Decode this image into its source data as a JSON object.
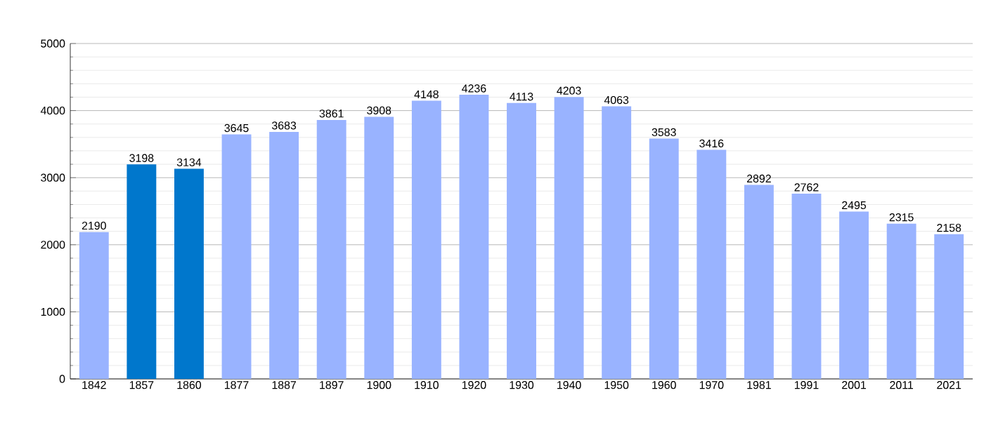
{
  "chart_data": {
    "type": "bar",
    "categories": [
      "1842",
      "1857",
      "1860",
      "1877",
      "1887",
      "1897",
      "1900",
      "1910",
      "1920",
      "1930",
      "1940",
      "1950",
      "1960",
      "1970",
      "1981",
      "1991",
      "2001",
      "2011",
      "2021"
    ],
    "values": [
      2190,
      3198,
      3134,
      3645,
      3683,
      3861,
      3908,
      4148,
      4236,
      4113,
      4203,
      4063,
      3583,
      3416,
      2892,
      2762,
      2495,
      2315,
      2158
    ],
    "colors": [
      "#99b3ff",
      "#0077cc",
      "#0077cc",
      "#99b3ff",
      "#99b3ff",
      "#99b3ff",
      "#99b3ff",
      "#99b3ff",
      "#99b3ff",
      "#99b3ff",
      "#99b3ff",
      "#99b3ff",
      "#99b3ff",
      "#99b3ff",
      "#99b3ff",
      "#99b3ff",
      "#99b3ff",
      "#99b3ff",
      "#99b3ff"
    ],
    "ylim": [
      0,
      5000
    ],
    "yticks": [
      0,
      1000,
      2000,
      3000,
      4000,
      5000
    ],
    "grid": "y",
    "data_labels": true
  }
}
